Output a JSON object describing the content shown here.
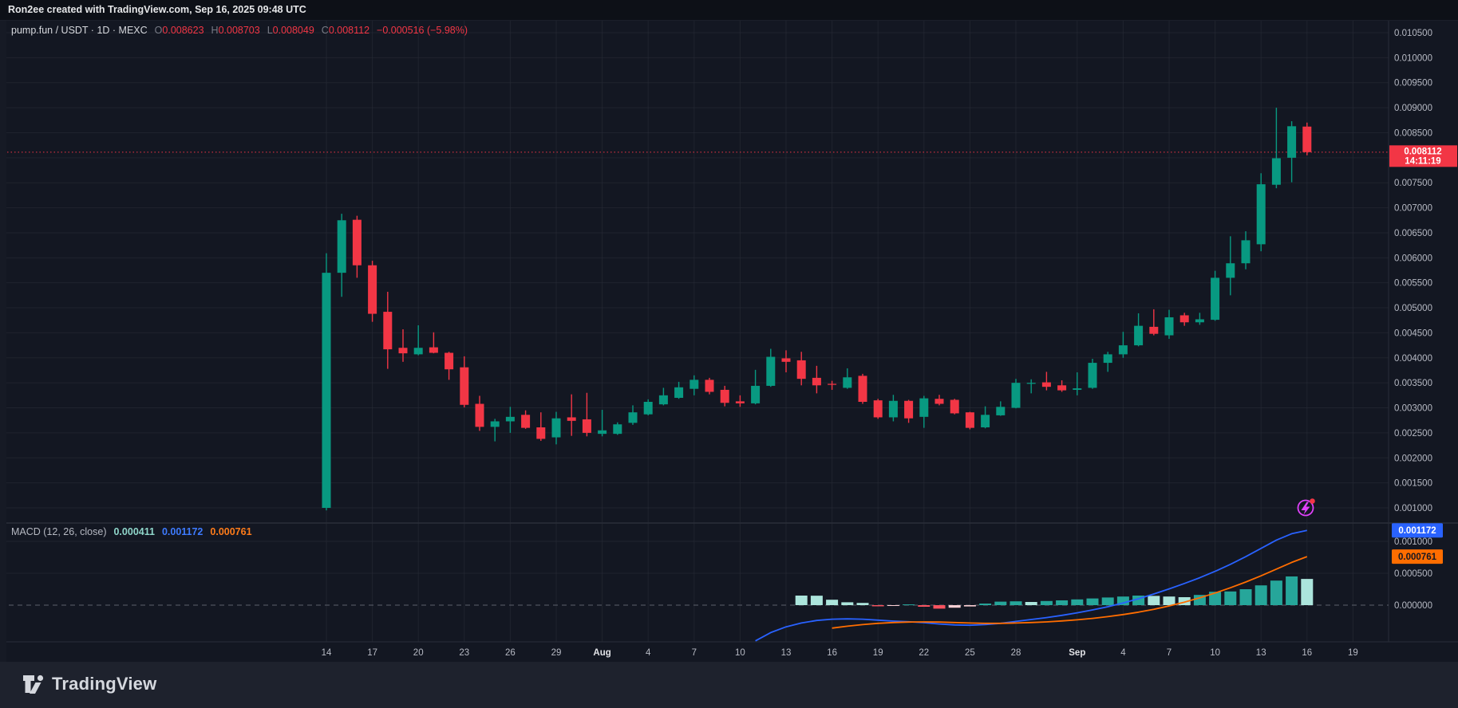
{
  "header": {
    "attribution": "Ron2ee created with TradingView.com, Sep 16, 2025 09:48 UTC"
  },
  "legend": {
    "symbol": "pump.fun / USDT · 1D · MEXC",
    "o_label": "O",
    "o": "0.008623",
    "h_label": "H",
    "h": "0.008703",
    "l_label": "L",
    "l": "0.008049",
    "c_label": "C",
    "c": "0.008112",
    "change": "−0.000516 (−5.98%)"
  },
  "macd_legend": {
    "title": "MACD (12, 26, close)",
    "hist": "0.000411",
    "macd": "0.001172",
    "signal": "0.000761"
  },
  "price_badge": {
    "price": "0.008112",
    "countdown": "14:11:19"
  },
  "macd_badges": {
    "macd": "0.001172",
    "signal": "0.000761",
    "hist": "0.000411"
  },
  "footer": {
    "brand": "TradingView"
  },
  "colors": {
    "bg": "#131722",
    "grid": "rgba(42,46,57,0.55)",
    "axis_line": "#2a2e39",
    "axis_text": "#b7bac4",
    "month_text": "#e2e3e7",
    "up": "#089981",
    "down": "#f23645",
    "macd_line": "#2962ff",
    "signal_line": "#ff6d00",
    "hist_up": "#26a69a",
    "hist_up_weak": "#ace5dc",
    "hist_down": "#f7525f",
    "hist_down_weak": "#fbcfd4",
    "badge_price_bg": "#f23645",
    "badge_macd_bg": "#2962ff",
    "badge_signal_bg": "#ff6d00",
    "badge_hist_bg": "#b2dfd8",
    "zero_dash": "#5d616c",
    "event_magenta": "#e040fb",
    "event_dot": "#f23645"
  },
  "chart_data": {
    "type": "candlestick+macd",
    "title": "pump.fun / USDT",
    "interval": "1D",
    "exchange": "MEXC",
    "price_unit": 1e-06,
    "start_date": "Jul 14",
    "end_date": "Sep 16",
    "ylim": [
      0.0008,
      0.0107
    ],
    "grid": true,
    "legend_position": "top-left",
    "last": {
      "open": 0.008623,
      "high": 0.008703,
      "low": 0.008049,
      "close": 0.008112,
      "change": -0.000516,
      "change_pct": -5.98,
      "countdown": "14:11:19"
    },
    "price_ticks": [
      10500,
      10000,
      9500,
      9000,
      8500,
      8000,
      7500,
      7000,
      6500,
      6000,
      5500,
      5000,
      4500,
      4000,
      3500,
      3000,
      2500,
      2000,
      1500,
      1000
    ],
    "hidden_price_label": 8000,
    "time_ticks": [
      [
        0,
        "14"
      ],
      [
        3,
        "17"
      ],
      [
        6,
        "20"
      ],
      [
        9,
        "23"
      ],
      [
        12,
        "26"
      ],
      [
        15,
        "29"
      ],
      [
        18,
        "Aug"
      ],
      [
        21,
        "4"
      ],
      [
        24,
        "7"
      ],
      [
        27,
        "10"
      ],
      [
        30,
        "13"
      ],
      [
        33,
        "16"
      ],
      [
        36,
        "19"
      ],
      [
        39,
        "22"
      ],
      [
        42,
        "25"
      ],
      [
        45,
        "28"
      ],
      [
        49,
        "Sep"
      ],
      [
        52,
        "4"
      ],
      [
        55,
        "7"
      ],
      [
        58,
        "10"
      ],
      [
        61,
        "13"
      ],
      [
        64,
        "16"
      ],
      [
        67,
        "19"
      ]
    ],
    "candles": [
      [
        1000,
        6090,
        950,
        5700
      ],
      [
        5700,
        6880,
        5220,
        6750
      ],
      [
        6760,
        6840,
        5600,
        5850
      ],
      [
        5850,
        5940,
        4720,
        4880
      ],
      [
        4920,
        5320,
        3780,
        4170
      ],
      [
        4200,
        4570,
        3920,
        4090
      ],
      [
        4070,
        4650,
        4050,
        4200
      ],
      [
        4210,
        4510,
        4090,
        4100
      ],
      [
        4100,
        4120,
        3560,
        3770
      ],
      [
        3810,
        4030,
        3010,
        3060
      ],
      [
        3080,
        3240,
        2540,
        2620
      ],
      [
        2620,
        2780,
        2330,
        2730
      ],
      [
        2730,
        3020,
        2500,
        2820
      ],
      [
        2860,
        2950,
        2580,
        2600
      ],
      [
        2610,
        2910,
        2340,
        2380
      ],
      [
        2410,
        2920,
        2270,
        2790
      ],
      [
        2810,
        3270,
        2440,
        2740
      ],
      [
        2770,
        3300,
        2430,
        2500
      ],
      [
        2480,
        2960,
        2430,
        2550
      ],
      [
        2480,
        2710,
        2460,
        2670
      ],
      [
        2700,
        3050,
        2660,
        2910
      ],
      [
        2870,
        3170,
        2850,
        3120
      ],
      [
        3070,
        3400,
        3050,
        3250
      ],
      [
        3200,
        3520,
        3180,
        3410
      ],
      [
        3380,
        3650,
        3250,
        3560
      ],
      [
        3560,
        3600,
        3270,
        3320
      ],
      [
        3360,
        3440,
        3030,
        3100
      ],
      [
        3130,
        3250,
        3020,
        3090
      ],
      [
        3090,
        3760,
        3070,
        3440
      ],
      [
        3440,
        4180,
        3420,
        4020
      ],
      [
        3990,
        4150,
        3710,
        3920
      ],
      [
        3950,
        4120,
        3450,
        3580
      ],
      [
        3600,
        3840,
        3290,
        3450
      ],
      [
        3480,
        3540,
        3360,
        3460
      ],
      [
        3400,
        3790,
        3380,
        3610
      ],
      [
        3640,
        3680,
        3080,
        3120
      ],
      [
        3150,
        3180,
        2780,
        2810
      ],
      [
        2810,
        3260,
        2730,
        3140
      ],
      [
        3140,
        3160,
        2700,
        2790
      ],
      [
        2820,
        3240,
        2600,
        3190
      ],
      [
        3180,
        3260,
        3050,
        3080
      ],
      [
        3160,
        3180,
        2870,
        2890
      ],
      [
        2910,
        2920,
        2570,
        2600
      ],
      [
        2610,
        3030,
        2590,
        2860
      ],
      [
        2850,
        3130,
        2840,
        3020
      ],
      [
        3000,
        3580,
        2990,
        3500
      ],
      [
        3480,
        3570,
        3290,
        3500
      ],
      [
        3510,
        3720,
        3350,
        3420
      ],
      [
        3450,
        3550,
        3320,
        3350
      ],
      [
        3360,
        3710,
        3250,
        3390
      ],
      [
        3400,
        3980,
        3380,
        3900
      ],
      [
        3900,
        4120,
        3720,
        4070
      ],
      [
        4070,
        4520,
        4000,
        4250
      ],
      [
        4250,
        4890,
        4230,
        4640
      ],
      [
        4620,
        4970,
        4450,
        4480
      ],
      [
        4450,
        4960,
        4380,
        4810
      ],
      [
        4850,
        4900,
        4640,
        4710
      ],
      [
        4710,
        4900,
        4660,
        4770
      ],
      [
        4760,
        5740,
        4740,
        5600
      ],
      [
        5600,
        6430,
        5250,
        5890
      ],
      [
        5890,
        6530,
        5770,
        6350
      ],
      [
        6270,
        7690,
        6130,
        7470
      ],
      [
        7460,
        9000,
        7390,
        7990
      ],
      [
        8000,
        8730,
        7510,
        8630
      ],
      [
        8623,
        8703,
        8049,
        8112
      ]
    ],
    "macd": {
      "title": "MACD",
      "params": "(12, 26, close)",
      "unit": 1e-06,
      "values": {
        "histogram": 0.000411,
        "macd": 0.001172,
        "signal": 0.000761
      },
      "axis_ticks": [
        1000,
        500,
        0
      ],
      "zero_label": "0.000000",
      "hist_start_day": 31,
      "histogram": [
        [
          150,
          "L"
        ],
        [
          148,
          "L"
        ],
        [
          85,
          "L"
        ],
        [
          45,
          "L"
        ],
        [
          35,
          "L"
        ],
        [
          -18,
          "R"
        ],
        [
          -10,
          "P"
        ],
        [
          12,
          "T"
        ],
        [
          -25,
          "R"
        ],
        [
          -55,
          "R"
        ],
        [
          -40,
          "P"
        ],
        [
          -20,
          "P"
        ],
        [
          25,
          "T"
        ],
        [
          55,
          "T"
        ],
        [
          60,
          "T"
        ],
        [
          50,
          "L"
        ],
        [
          65,
          "T"
        ],
        [
          75,
          "T"
        ],
        [
          90,
          "T"
        ],
        [
          105,
          "T"
        ],
        [
          120,
          "T"
        ],
        [
          135,
          "T"
        ],
        [
          150,
          "T"
        ],
        [
          145,
          "L"
        ],
        [
          135,
          "L"
        ],
        [
          125,
          "L"
        ],
        [
          160,
          "T"
        ],
        [
          210,
          "T"
        ],
        [
          215,
          "T"
        ],
        [
          250,
          "T"
        ],
        [
          310,
          "T"
        ],
        [
          385,
          "T"
        ],
        [
          450,
          "T"
        ],
        [
          411,
          "L"
        ]
      ],
      "macd_start_day": 28,
      "macd_line": [
        -560,
        -430,
        -340,
        -280,
        -240,
        -220,
        -215,
        -220,
        -235,
        -250,
        -260,
        -275,
        -295,
        -310,
        -315,
        -305,
        -285,
        -255,
        -225,
        -195,
        -160,
        -120,
        -75,
        -25,
        35,
        100,
        175,
        255,
        340,
        430,
        530,
        640,
        760,
        890,
        1020,
        1120,
        1172
      ],
      "signal_start_day": 33,
      "signal_line": [
        -360,
        -330,
        -305,
        -285,
        -272,
        -265,
        -262,
        -265,
        -272,
        -280,
        -285,
        -285,
        -280,
        -272,
        -262,
        -248,
        -230,
        -208,
        -180,
        -148,
        -110,
        -65,
        -12,
        48,
        115,
        190,
        272,
        362,
        460,
        565,
        670,
        761
      ]
    }
  }
}
